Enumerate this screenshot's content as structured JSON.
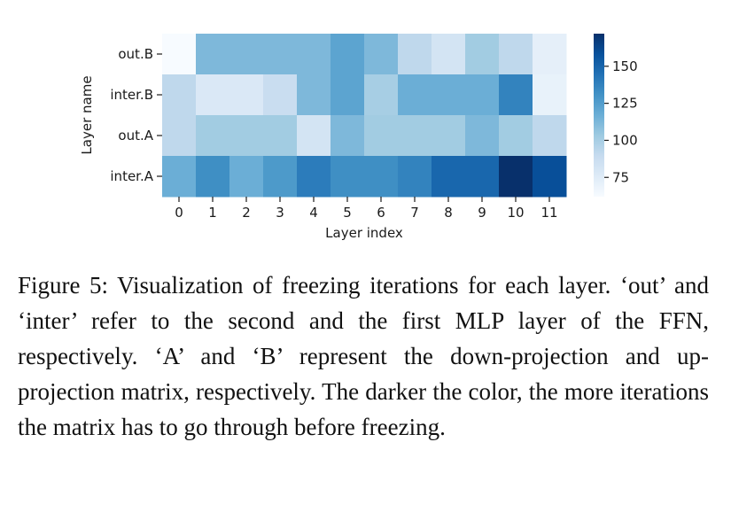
{
  "chart_data": {
    "type": "heatmap",
    "xlabel": "Layer index",
    "ylabel": "Layer name",
    "x_categories": [
      "0",
      "1",
      "2",
      "3",
      "4",
      "5",
      "6",
      "7",
      "8",
      "9",
      "10",
      "11"
    ],
    "y_categories": [
      "out.B",
      "inter.B",
      "out.A",
      "inter.A"
    ],
    "values": [
      [
        62,
        112,
        112,
        112,
        112,
        122,
        112,
        92,
        82,
        102,
        92,
        72
      ],
      [
        92,
        78,
        78,
        88,
        112,
        122,
        100,
        117,
        117,
        117,
        137,
        70
      ],
      [
        92,
        102,
        102,
        102,
        82,
        112,
        102,
        102,
        102,
        112,
        102,
        92
      ],
      [
        117,
        132,
        117,
        127,
        140,
        132,
        132,
        137,
        149,
        149,
        172,
        159
      ]
    ],
    "colorbar": {
      "ticks": [
        75,
        100,
        125,
        150
      ],
      "range": [
        62,
        172
      ]
    },
    "colormap": [
      "#f7fbff",
      "#deebf7",
      "#c6dbef",
      "#9ecae1",
      "#6baed6",
      "#4292c6",
      "#2171b5",
      "#08519c",
      "#08306b"
    ]
  },
  "caption": "Figure 5: Visualization of freezing iterations for each layer. ‘out’ and ‘inter’ refer to the second and the first MLP layer of the FFN, respectively. ‘A’ and ‘B’ represent the down-projection and up-projection matrix, respectively. The darker the color, the more iterations the matrix has to go through before freezing."
}
